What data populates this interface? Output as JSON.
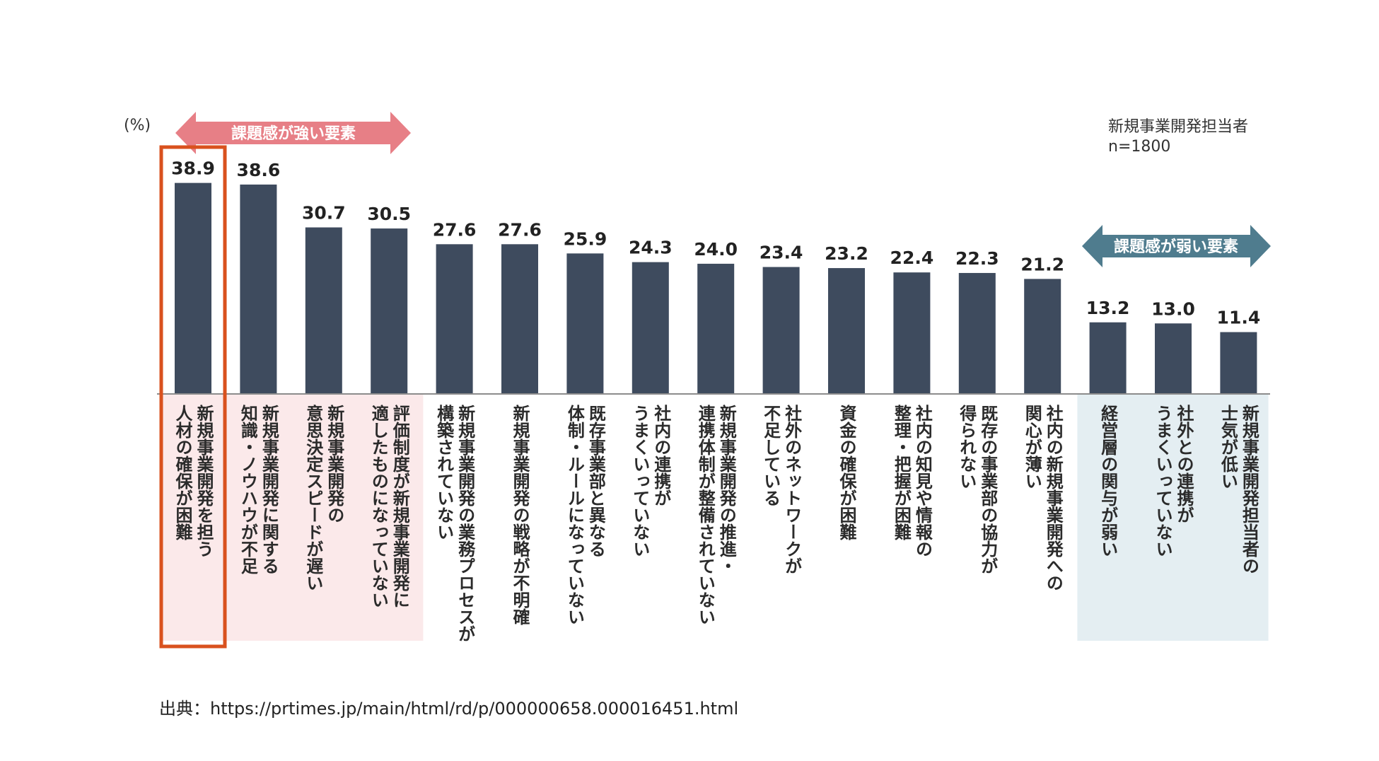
{
  "chart_data": {
    "type": "bar",
    "unit_label": "(%)",
    "respondent_label": "新規事業開発担当者",
    "sample_size_label": "n=1800",
    "categories": [
      [
        "新規事業開発を担う",
        "人材の確保が困難"
      ],
      [
        "新規事業開発に関する",
        "知識・ノウハウが不足"
      ],
      [
        "新規事業開発の",
        "意思決定スピードが遅い"
      ],
      [
        "評価制度が新規事業開発に",
        "適したものになっていない"
      ],
      [
        "新規事業開発の業務プロセスが",
        "構築されていない"
      ],
      [
        "新規事業開発の戦略が不明確"
      ],
      [
        "既存事業部と異なる",
        "体制・ルールになっていない"
      ],
      [
        "社内の連携が",
        "うまくいっていない"
      ],
      [
        "新規事業開発の推進・",
        "連携体制が整備されていない"
      ],
      [
        "社外のネットワークが",
        "不足している"
      ],
      [
        "資金の確保が困難"
      ],
      [
        "社内の知見や情報の",
        "整理・把握が困難"
      ],
      [
        "既存の事業部の協力が",
        "得られない"
      ],
      [
        "社内の新規事業開発への",
        "関心が薄い"
      ],
      [
        "経営層の関与が弱い"
      ],
      [
        "社外との連携が",
        "うまくいっていない"
      ],
      [
        "新規事業開発担当者の",
        "士気が低い"
      ]
    ],
    "values": [
      38.9,
      38.6,
      30.7,
      30.5,
      27.6,
      27.6,
      25.9,
      24.3,
      24.0,
      23.4,
      23.2,
      22.4,
      22.3,
      21.2,
      13.2,
      13.0,
      11.4
    ],
    "value_labels": [
      "38.9",
      "38.6",
      "30.7",
      "30.5",
      "27.6",
      "27.6",
      "25.9",
      "24.3",
      "24.0",
      "23.4",
      "23.2",
      "22.4",
      "22.3",
      "21.2",
      "13.2",
      "13.0",
      "11.4"
    ],
    "strong_group": {
      "label": "課題感が強い要素",
      "count": 4
    },
    "weak_group": {
      "label": "課題感が弱い要素",
      "count": 3
    },
    "highlighted_index": 0,
    "colors": {
      "bar": "#3e4b5e",
      "strong_bg": "#fbe9ea",
      "weak_bg": "#e4eef2",
      "strong_arrow": "#e77f86",
      "weak_arrow": "#4f7c8e",
      "highlight_border": "#d9511e",
      "baseline": "#8c8c8c"
    }
  },
  "source": {
    "prefix": "出典：",
    "url": "https://prtimes.jp/main/html/rd/p/000000658.000016451.html"
  }
}
